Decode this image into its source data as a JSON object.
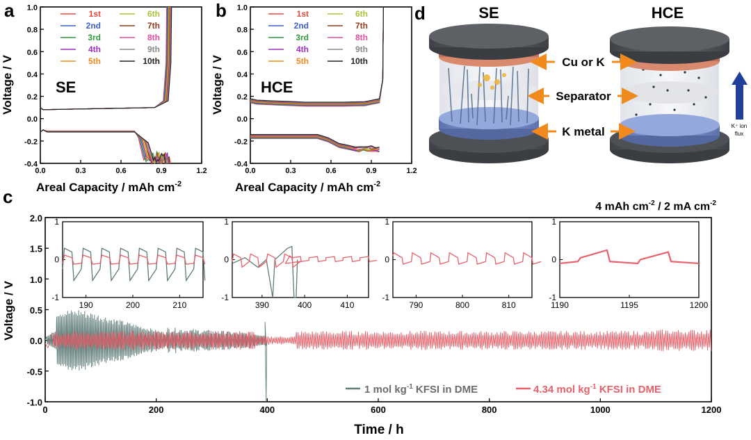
{
  "chart_data": [
    {
      "panel": "a",
      "type": "line",
      "label": "SE",
      "xlabel": "Areal Capacity / mAh cm",
      "xlabel_sup": "-2",
      "ylabel": "Voltage / V",
      "xlim": [
        0,
        1.2
      ],
      "ylim": [
        -0.4,
        1.0
      ],
      "xticks": [
        "0.0",
        "0.3",
        "0.6",
        "0.9",
        "1.2"
      ],
      "yticks": [
        "-0.4",
        "-0.2",
        "0.0",
        "0.2",
        "0.4",
        "0.6",
        "0.8",
        "1.0"
      ],
      "legend": [
        "1st",
        "2nd",
        "3rd",
        "4th",
        "5th",
        "6th",
        "7th",
        "8th",
        "9th",
        "10th"
      ],
      "colors": [
        "#e8483c",
        "#3c5fc8",
        "#2e9a3a",
        "#9b2fbf",
        "#f08a1c",
        "#a8c23a",
        "#8b3a1a",
        "#e04ca0",
        "#8a8a8a",
        "#222222"
      ],
      "strip_voltage": 0.08,
      "plate_voltage": -0.1,
      "endpoints": [
        0.97,
        0.96,
        0.95,
        0.96,
        0.94,
        0.95,
        0.96,
        0.94,
        0.95,
        0.93
      ]
    },
    {
      "panel": "b",
      "type": "line",
      "label": "HCE",
      "xlabel": "Areal Capacity / mAh cm",
      "xlabel_sup": "-2",
      "ylabel": "Voltage / V",
      "xlim": [
        0,
        1.2
      ],
      "ylim": [
        -0.4,
        1.0
      ],
      "xticks": [
        "0.0",
        "0.3",
        "0.6",
        "0.9",
        "1.2"
      ],
      "yticks": [
        "-0.4",
        "-0.2",
        "0.0",
        "0.2",
        "0.4",
        "0.6",
        "0.8",
        "1.0"
      ],
      "legend": [
        "1st",
        "2nd",
        "3rd",
        "4th",
        "5th",
        "6th",
        "7th",
        "8th",
        "9th",
        "10th"
      ],
      "colors": [
        "#e8483c",
        "#3c5fc8",
        "#2e9a3a",
        "#9b2fbf",
        "#f08a1c",
        "#a8c23a",
        "#8b3a1a",
        "#e04ca0",
        "#8a8a8a",
        "#222222"
      ],
      "strip_voltage": 0.15,
      "plate_voltage": -0.15,
      "plate_end_voltage": -0.27,
      "capacity": 0.99
    },
    {
      "panel": "c",
      "type": "line",
      "annotation": "4 mAh cm",
      "annotation_sup1": "-2",
      "annotation_mid": " / 2 mA cm",
      "annotation_sup2": "-2",
      "xlabel": "Time / h",
      "ylabel": "Voltage / V",
      "xlim": [
        0,
        1200
      ],
      "ylim": [
        -1.0,
        2.0
      ],
      "xticks": [
        "0",
        "200",
        "400",
        "600",
        "800",
        "1000",
        "1200"
      ],
      "yticks": [
        "-1.0",
        "-0.5",
        "0.0",
        "0.5",
        "1.0",
        "1.5",
        "2.0"
      ],
      "series": [
        {
          "name": "1 mol kg",
          "sup": "-1",
          "suffix": " KFSI in DME",
          "color": "#5f7c78",
          "amplitude_peak": 0.5,
          "short_circuit_h": 398
        },
        {
          "name": "4.34 mol kg",
          "sup": "-1",
          "suffix": " KFSI in DME",
          "color": "#e8606a",
          "amplitude": 0.12
        }
      ],
      "insets": [
        {
          "xlim": [
            185,
            215
          ],
          "xticks": [
            "190",
            "200",
            "210"
          ],
          "ylim": [
            -1,
            1
          ],
          "yticks": [
            "-1",
            "0",
            "1"
          ]
        },
        {
          "xlim": [
            383,
            415
          ],
          "xticks": [
            "390",
            "400",
            "410"
          ],
          "ylim": [
            -1,
            1
          ],
          "yticks": [
            "-1",
            "0",
            "1"
          ]
        },
        {
          "xlim": [
            785,
            815
          ],
          "xticks": [
            "790",
            "800",
            "810"
          ],
          "ylim": [
            -1,
            1
          ],
          "yticks": [
            "-1",
            "0",
            "1"
          ]
        },
        {
          "xlim": [
            1190,
            1200
          ],
          "xticks": [
            "1190",
            "1195",
            "1200"
          ],
          "ylim": [
            -1,
            1
          ],
          "yticks": [
            "-1",
            "0",
            "1"
          ]
        }
      ]
    }
  ],
  "panel_d": {
    "letter": "d",
    "title_left": "SE",
    "title_right": "HCE",
    "label_top": "Cu or K",
    "label_mid": "Separator",
    "label_bottom": "K metal",
    "flux_label_line1": "K⁺ ion",
    "flux_label_line2": "flux",
    "colors": {
      "cap": "#5a5e62",
      "copper": "#d98a6e",
      "kmetal": "#7f93c9",
      "arrow": "#f08a1c",
      "flux": "#1f3f9a"
    }
  }
}
